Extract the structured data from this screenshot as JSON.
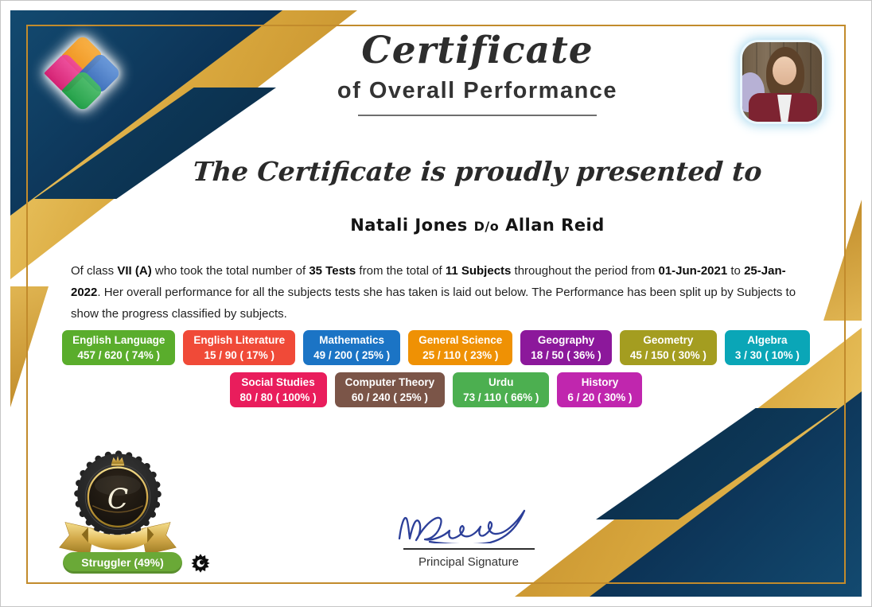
{
  "certificate": {
    "title": "Certificate",
    "subtitle": "of Overall Performance",
    "presented_text": "The Certificate is proudly presented to",
    "student_name": "Natali Jones",
    "relation": "D/o",
    "parent_name": "Allan Reid"
  },
  "description_segments": [
    {
      "text": "Of class ",
      "bold": false
    },
    {
      "text": "VII (A)",
      "bold": true
    },
    {
      "text": " who took the total number of ",
      "bold": false
    },
    {
      "text": "35 Tests",
      "bold": true
    },
    {
      "text": " from the total of ",
      "bold": false
    },
    {
      "text": "11 Subjects",
      "bold": true
    },
    {
      "text": " throughout the period from ",
      "bold": false
    },
    {
      "text": "01-Jun-2021",
      "bold": true
    },
    {
      "text": " to ",
      "bold": false
    },
    {
      "text": "25-Jan-2022",
      "bold": true
    },
    {
      "text": ". Her overall performance for all the subjects tests she has taken is laid out below. The Performance has been split up by Subjects to show the progress classified by subjects.",
      "bold": false
    }
  ],
  "subject_rows": [
    [
      {
        "name": "English Language",
        "score": "457 / 620 ( 74% )",
        "color": "#5aad2c"
      },
      {
        "name": "English Literature",
        "score": "15 / 90 ( 17% )",
        "color": "#f04a38"
      },
      {
        "name": "Mathematics",
        "score": "49 / 200 ( 25% )",
        "color": "#1b74c5"
      },
      {
        "name": "General Science",
        "score": "25 / 110 ( 23% )",
        "color": "#ef9104"
      },
      {
        "name": "Geography",
        "score": "18 / 50 ( 36% )",
        "color": "#8c189b"
      },
      {
        "name": "Geometry",
        "score": "45 / 150 ( 30% )",
        "color": "#a49d20"
      },
      {
        "name": "Algebra",
        "score": "3 / 30 ( 10% )",
        "color": "#0aa6b7"
      }
    ],
    [
      {
        "name": "Social Studies",
        "score": "80 / 80 ( 100% )",
        "color": "#e91d5c"
      },
      {
        "name": "Computer Theory",
        "score": "60 / 240 ( 25% )",
        "color": "#7b5548"
      },
      {
        "name": "Urdu",
        "score": "73 / 110 ( 66% )",
        "color": "#4caf50"
      },
      {
        "name": "History",
        "score": "6 / 20 ( 30% )",
        "color": "#c026ae"
      }
    ]
  ],
  "award": {
    "grade_letter": "C",
    "label": "Struggler (49%)",
    "pill_color": "#6aa937"
  },
  "signature": {
    "label": "Principal Signature"
  },
  "theme": {
    "navy": "#0c3356",
    "gold": "#d9a83e",
    "border_gold": "#c28b2c",
    "signature_ink": "#2c3f99"
  }
}
